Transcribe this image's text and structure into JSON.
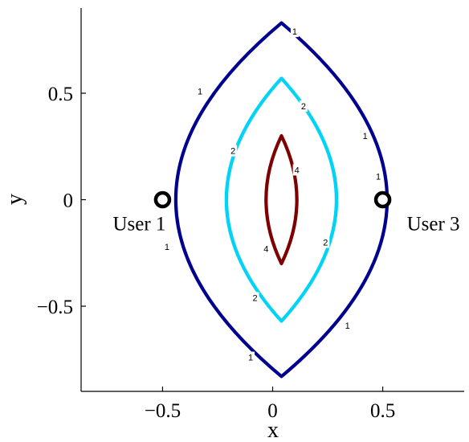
{
  "chart_data": {
    "type": "contour",
    "xlabel": "x",
    "ylabel": "y",
    "xlim": [
      -0.87,
      0.87
    ],
    "ylim": [
      -0.9,
      0.9
    ],
    "xticks": [
      -0.5,
      0,
      0.5
    ],
    "yticks": [
      -0.5,
      0,
      0.5
    ],
    "xtick_labels": [
      "−0.5",
      "0",
      "0.5"
    ],
    "ytick_labels": [
      "−0.5",
      "0",
      "0.5"
    ],
    "grid": false,
    "contours": [
      {
        "level": "1",
        "color": "#00008f",
        "center_x": 0.04,
        "half_width": 0.48,
        "y_min": -0.83,
        "y_max": 0.83,
        "label_points": [
          [
            0.1,
            0.79
          ],
          [
            -0.33,
            0.51
          ],
          [
            0.42,
            0.3
          ],
          [
            0.48,
            0.11
          ],
          [
            -0.48,
            -0.22
          ],
          [
            0.34,
            -0.59
          ],
          [
            -0.1,
            -0.74
          ]
        ]
      },
      {
        "level": "2",
        "color": "#00d3f5",
        "center_x": 0.04,
        "half_width": 0.25,
        "y_min": -0.57,
        "y_max": 0.57,
        "label_points": [
          [
            0.14,
            0.44
          ],
          [
            -0.18,
            0.23
          ],
          [
            0.24,
            -0.2
          ],
          [
            -0.08,
            -0.46
          ]
        ]
      },
      {
        "level": "4",
        "color": "#7f0000",
        "center_x": 0.04,
        "half_width": 0.07,
        "y_min": -0.3,
        "y_max": 0.3,
        "label_points": [
          [
            0.11,
            0.14
          ],
          [
            -0.03,
            -0.23
          ]
        ]
      }
    ],
    "points": [
      {
        "label": "User 1",
        "x": -0.5,
        "y": 0.0
      },
      {
        "label": "User 3",
        "x": 0.5,
        "y": 0.0
      }
    ]
  }
}
